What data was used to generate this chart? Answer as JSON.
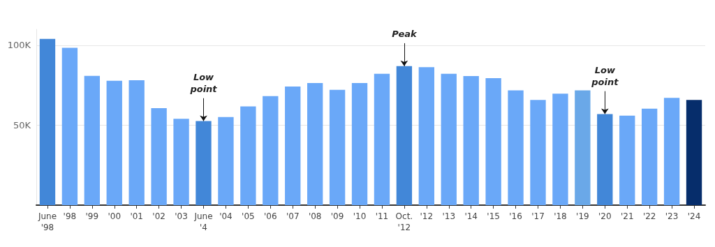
{
  "chart_data": {
    "type": "bar",
    "categories": [
      "June '98",
      "'98",
      "'99",
      "'00",
      "'01",
      "'02",
      "'03",
      "June '4",
      "'04",
      "'05",
      "'06",
      "'07",
      "'08",
      "'09",
      "'10",
      "'11",
      "Oct. '12",
      "'12",
      "'13",
      "'14",
      "'15",
      "'16",
      "'17",
      "'18",
      "'19",
      "'20",
      "'21",
      "'22",
      "'23",
      "'24"
    ],
    "values": [
      104,
      98.4,
      80.9,
      77.8,
      78.1,
      60.7,
      54,
      52.6,
      55.1,
      61.8,
      68.2,
      74.2,
      76.4,
      72.1,
      76.4,
      82.2,
      87,
      86.3,
      82.2,
      80.8,
      79.4,
      71.8,
      65.8,
      69.7,
      71.8,
      57,
      56,
      60.3,
      67.1,
      65.8
    ],
    "colors": [
      "#4287d8",
      "#6aa8f8",
      "#6aa8f8",
      "#6aa8f8",
      "#6aa8f8",
      "#6aa8f8",
      "#6aa8f8",
      "#4287d8",
      "#6aa8f8",
      "#6aa8f8",
      "#6aa8f8",
      "#6aa8f8",
      "#6aa8f8",
      "#6aa8f8",
      "#6aa8f8",
      "#6aa8f8",
      "#4287d8",
      "#6aa8f8",
      "#6aa8f8",
      "#6aa8f8",
      "#6aa8f8",
      "#6aa8f8",
      "#6aa8f8",
      "#6aa8f8",
      "#6aa8e8",
      "#4287d8",
      "#6aa8f8",
      "#6aa8f8",
      "#6aa8f8",
      "#062d6b"
    ],
    "ylim": [
      0,
      110
    ],
    "yticks": [
      {
        "value": 50,
        "label": "50K"
      },
      {
        "value": 100,
        "label": "100K"
      }
    ],
    "grid": "y",
    "annotations": [
      {
        "text": "Low point",
        "x": "June '4",
        "y": 52.6
      },
      {
        "text": "Peak",
        "x": "Oct. '12",
        "y": 87
      },
      {
        "text": "Low point",
        "x": "'20",
        "y": 57
      }
    ]
  }
}
